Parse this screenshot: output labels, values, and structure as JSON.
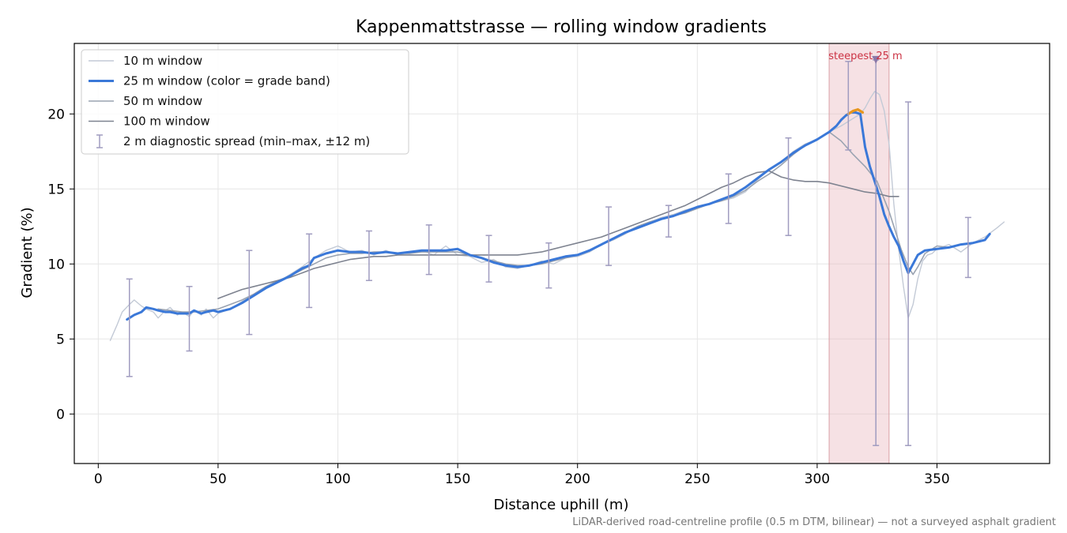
{
  "chart_data": {
    "type": "line",
    "title": "Kappenmattstrasse — rolling window gradients",
    "xlabel": "Distance uphill (m)",
    "ylabel": "Gradient (%)",
    "xlim": [
      -10,
      397
    ],
    "ylim": [
      -3.3,
      24.7
    ],
    "xticks": [
      0,
      50,
      100,
      150,
      200,
      250,
      300,
      350
    ],
    "yticks": [
      0,
      5,
      10,
      15,
      20
    ],
    "grid": true,
    "legend_position": "top-left",
    "footnote": "LiDAR-derived road-centreline profile (0.5 m DTM, bilinear) — not a surveyed asphalt gradient",
    "colors": {
      "w10": "#c3cad6",
      "w25": "#3a78d8",
      "w25_steep": "#e8961e",
      "w50": "#9aa3b1",
      "w100": "#7e8390",
      "errorbar": "#a09cc0",
      "highlight": "#e9b5bb",
      "annotation": "#cc3344",
      "grid": "#e6e6e6"
    },
    "highlight_band": {
      "x0": 305,
      "x1": 330,
      "label": "steepest 25 m",
      "marker_x": 324.5,
      "marker_y": 23.6
    },
    "series": [
      {
        "name": "10 m window",
        "key": "w10",
        "x": [
          5,
          8,
          10,
          13,
          15,
          18,
          20,
          23,
          25,
          28,
          30,
          33,
          35,
          38,
          40,
          43,
          45,
          48,
          50,
          55,
          60,
          65,
          70,
          75,
          80,
          85,
          90,
          95,
          100,
          105,
          110,
          115,
          120,
          125,
          130,
          135,
          140,
          145,
          150,
          155,
          160,
          165,
          170,
          175,
          180,
          185,
          190,
          195,
          200,
          205,
          210,
          215,
          220,
          225,
          230,
          235,
          240,
          245,
          250,
          255,
          260,
          265,
          270,
          275,
          280,
          285,
          290,
          295,
          300,
          305,
          310,
          315,
          318,
          320,
          322,
          324,
          326,
          328,
          330,
          332,
          334,
          336,
          338,
          340,
          342,
          344,
          346,
          348,
          350,
          355,
          360,
          365,
          370,
          375,
          378
        ],
        "y": [
          4.9,
          6.0,
          6.8,
          7.3,
          7.6,
          7.2,
          7.0,
          6.8,
          6.4,
          6.9,
          7.1,
          6.6,
          6.8,
          6.5,
          6.9,
          6.6,
          7.0,
          6.4,
          6.7,
          7.0,
          7.5,
          8.0,
          8.5,
          8.8,
          9.3,
          9.8,
          10.4,
          10.9,
          11.2,
          10.8,
          10.9,
          10.6,
          10.9,
          10.6,
          10.8,
          10.9,
          10.6,
          11.2,
          10.6,
          10.5,
          10.1,
          10.3,
          9.8,
          9.7,
          9.9,
          10.2,
          10.0,
          10.4,
          10.5,
          10.8,
          11.3,
          11.6,
          12.0,
          12.5,
          12.8,
          13.1,
          13.3,
          13.6,
          13.8,
          14.0,
          14.2,
          14.4,
          14.8,
          15.6,
          16.3,
          16.8,
          17.5,
          18.0,
          18.3,
          18.8,
          19.2,
          19.7,
          20.0,
          20.4,
          21.0,
          21.5,
          21.3,
          20.2,
          18.0,
          14.0,
          11.0,
          8.5,
          6.4,
          7.3,
          9.0,
          10.2,
          10.6,
          10.7,
          11.0,
          11.3,
          10.8,
          11.4,
          11.8,
          12.4,
          12.8
        ]
      },
      {
        "name": "25 m window (color = grade band)",
        "key": "w25",
        "x": [
          12,
          15,
          18,
          20,
          23,
          25,
          28,
          30,
          33,
          35,
          38,
          40,
          43,
          45,
          48,
          50,
          55,
          60,
          65,
          70,
          75,
          80,
          85,
          88,
          90,
          95,
          100,
          105,
          110,
          115,
          120,
          125,
          130,
          135,
          140,
          145,
          150,
          155,
          160,
          165,
          170,
          175,
          180,
          185,
          190,
          195,
          200,
          205,
          210,
          215,
          220,
          225,
          230,
          235,
          240,
          245,
          250,
          255,
          260,
          265,
          270,
          275,
          280,
          285,
          290,
          295,
          300,
          305,
          308,
          310,
          312,
          314,
          316,
          318,
          320,
          322,
          324,
          326,
          328,
          330,
          332,
          334,
          336,
          338,
          340,
          342,
          345,
          350,
          355,
          360,
          365,
          370,
          372
        ],
        "y": [
          6.3,
          6.6,
          6.8,
          7.1,
          7.0,
          6.9,
          6.8,
          6.8,
          6.7,
          6.7,
          6.7,
          6.9,
          6.7,
          6.8,
          6.9,
          6.8,
          7.0,
          7.4,
          7.9,
          8.4,
          8.8,
          9.2,
          9.7,
          9.9,
          10.4,
          10.7,
          10.9,
          10.8,
          10.8,
          10.7,
          10.8,
          10.7,
          10.8,
          10.9,
          10.9,
          10.9,
          11.0,
          10.6,
          10.4,
          10.1,
          9.9,
          9.8,
          9.9,
          10.1,
          10.3,
          10.5,
          10.6,
          10.9,
          11.3,
          11.7,
          12.1,
          12.4,
          12.7,
          13.0,
          13.2,
          13.5,
          13.8,
          14.0,
          14.3,
          14.6,
          15.1,
          15.7,
          16.3,
          16.8,
          17.4,
          17.9,
          18.3,
          18.8,
          19.2,
          19.6,
          19.9,
          20.1,
          20.1,
          20.0,
          17.8,
          16.5,
          15.5,
          14.5,
          13.3,
          12.5,
          11.8,
          11.2,
          10.2,
          9.4,
          10.0,
          10.6,
          10.9,
          11.0,
          11.1,
          11.3,
          11.4,
          11.6,
          12.0
        ]
      },
      {
        "name": "50 m window",
        "key": "w50",
        "x": [
          25,
          30,
          35,
          40,
          45,
          50,
          55,
          60,
          65,
          70,
          75,
          80,
          85,
          90,
          95,
          100,
          105,
          110,
          115,
          120,
          125,
          130,
          135,
          140,
          145,
          150,
          155,
          160,
          165,
          170,
          175,
          180,
          185,
          190,
          195,
          200,
          205,
          210,
          215,
          220,
          225,
          230,
          235,
          240,
          245,
          250,
          255,
          260,
          265,
          270,
          275,
          280,
          285,
          290,
          295,
          300,
          305,
          310,
          315,
          320,
          325,
          330,
          335,
          338,
          340,
          342,
          345,
          350,
          355
        ],
        "y": [
          7.0,
          6.9,
          6.8,
          6.8,
          6.9,
          7.0,
          7.3,
          7.6,
          8.0,
          8.5,
          8.9,
          9.2,
          9.6,
          10.0,
          10.4,
          10.6,
          10.7,
          10.7,
          10.8,
          10.8,
          10.7,
          10.7,
          10.8,
          10.8,
          10.8,
          10.8,
          10.6,
          10.4,
          10.2,
          10.0,
          9.9,
          9.9,
          10.0,
          10.2,
          10.4,
          10.6,
          10.9,
          11.3,
          11.7,
          12.1,
          12.5,
          12.8,
          13.0,
          13.2,
          13.4,
          13.7,
          14.0,
          14.2,
          14.5,
          14.9,
          15.5,
          16.0,
          16.6,
          17.3,
          17.9,
          18.3,
          18.8,
          18.2,
          17.3,
          16.5,
          15.5,
          13.5,
          11.0,
          9.8,
          9.3,
          9.8,
          10.7,
          11.2,
          11.1
        ]
      },
      {
        "name": "100 m window",
        "key": "w100",
        "x": [
          50,
          55,
          60,
          65,
          70,
          75,
          80,
          85,
          90,
          95,
          100,
          105,
          110,
          115,
          120,
          125,
          130,
          135,
          140,
          145,
          150,
          155,
          160,
          165,
          170,
          175,
          180,
          185,
          190,
          195,
          200,
          205,
          210,
          215,
          220,
          225,
          230,
          235,
          240,
          245,
          250,
          255,
          260,
          265,
          270,
          275,
          280,
          285,
          290,
          295,
          300,
          305,
          310,
          315,
          320,
          325,
          330,
          334
        ],
        "y": [
          7.7,
          8.0,
          8.3,
          8.5,
          8.7,
          8.9,
          9.1,
          9.4,
          9.7,
          9.9,
          10.1,
          10.3,
          10.4,
          10.5,
          10.5,
          10.6,
          10.6,
          10.6,
          10.6,
          10.6,
          10.6,
          10.6,
          10.6,
          10.6,
          10.6,
          10.6,
          10.7,
          10.8,
          11.0,
          11.2,
          11.4,
          11.6,
          11.8,
          12.1,
          12.4,
          12.7,
          13.0,
          13.3,
          13.6,
          13.9,
          14.3,
          14.7,
          15.1,
          15.4,
          15.8,
          16.1,
          16.2,
          15.8,
          15.6,
          15.5,
          15.5,
          15.4,
          15.2,
          15.0,
          14.8,
          14.7,
          14.5,
          14.5
        ]
      }
    ],
    "steep_segment": {
      "x": [
        313,
        315,
        317,
        319
      ],
      "y": [
        20.0,
        20.2,
        20.3,
        20.1
      ]
    },
    "diagnostic_spread": {
      "name": "2 m diagnostic spread (min–max, ±12 m)",
      "x": [
        13,
        38,
        63,
        88,
        113,
        138,
        163,
        188,
        213,
        238,
        263,
        288,
        313,
        324.5,
        338,
        363
      ],
      "low": [
        2.5,
        4.2,
        5.3,
        7.1,
        8.9,
        9.3,
        8.8,
        8.4,
        9.9,
        11.8,
        12.7,
        11.9,
        17.6,
        -2.1,
        -2.1,
        9.1
      ],
      "high": [
        9.0,
        8.5,
        10.9,
        12.0,
        12.2,
        12.6,
        11.9,
        11.4,
        13.8,
        13.9,
        16.0,
        18.4,
        23.5,
        23.6,
        20.8,
        13.1
      ]
    }
  }
}
